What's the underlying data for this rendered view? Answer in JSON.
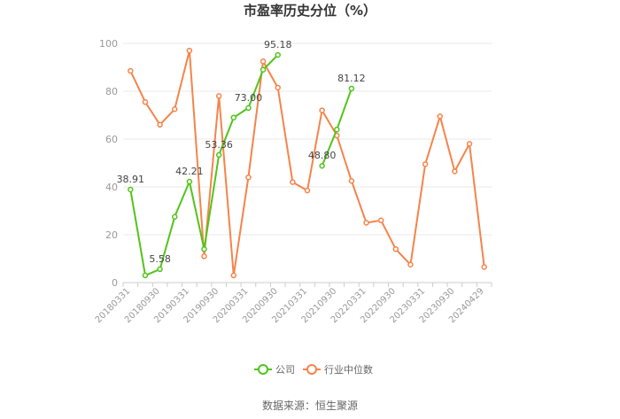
{
  "chart_data": {
    "type": "line",
    "title": "市盈率历史分位（%）",
    "source": "数据来源：恒生聚源",
    "ylim": [
      0,
      100
    ],
    "yticks": [
      0,
      20,
      40,
      60,
      80,
      100
    ],
    "grid": true,
    "legend_position": "bottom",
    "x": [
      "20180331",
      "20180630",
      "20180930",
      "20181231",
      "20190331",
      "20190630",
      "20190930",
      "20191231",
      "20200331",
      "20200630",
      "20200930",
      "20201231",
      "20210331",
      "20210630",
      "20210930",
      "20211231",
      "20220331",
      "20220630",
      "20220930",
      "20221231",
      "20230331",
      "20230630",
      "20230930",
      "20231231",
      "20240429"
    ],
    "xtick_labels": [
      "20180331",
      "20180930",
      "20190331",
      "20190930",
      "20200331",
      "20200930",
      "20210331",
      "20210930",
      "20220331",
      "20220930",
      "20230331",
      "20230930",
      "20240429"
    ],
    "series": [
      {
        "name": "公司",
        "color": "#52c41a",
        "values": [
          38.91,
          3,
          5.58,
          27.5,
          42.21,
          14,
          53.36,
          69,
          73.0,
          89,
          95.18,
          null,
          null,
          48.8,
          64,
          81.12,
          null,
          null,
          null,
          null,
          null,
          null,
          null,
          null,
          null
        ],
        "labels": [
          {
            "index": 0,
            "text": "38.91"
          },
          {
            "index": 2,
            "text": "5.58"
          },
          {
            "index": 4,
            "text": "42.21"
          },
          {
            "index": 6,
            "text": "53.36"
          },
          {
            "index": 8,
            "text": "73.00"
          },
          {
            "index": 10,
            "text": "95.18"
          },
          {
            "index": 13,
            "text": "48.80"
          },
          {
            "index": 15,
            "text": "81.12"
          }
        ]
      },
      {
        "name": "行业中位数",
        "color": "#f5844a",
        "values": [
          88.5,
          75.5,
          66,
          72.5,
          97,
          11,
          78,
          3,
          44,
          92.5,
          81.5,
          42,
          38.5,
          72,
          61.5,
          42.5,
          25,
          26,
          14,
          7.5,
          49.5,
          69.5,
          46.5,
          58,
          6.5
        ]
      }
    ]
  }
}
